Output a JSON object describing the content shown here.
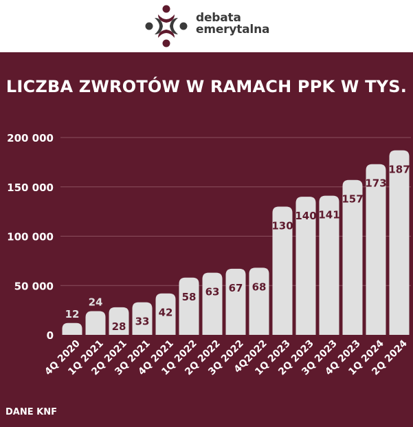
{
  "brand": {
    "name_line1": "debata",
    "name_line2": "emerytalna",
    "colors": {
      "dark": "#3a3a3a",
      "accent": "#5e1a2d"
    }
  },
  "chart_title": "LICZBA ZWROTÓW W RAMACH PPK W TYS.",
  "source_note": "DANE KNF",
  "chart_data": {
    "type": "bar",
    "title": "LICZBA ZWROTÓW W RAMACH PPK W TYS.",
    "categories": [
      "4Q 2020",
      "1Q 2021",
      "2Q 2021",
      "3Q 2021",
      "4Q 2021",
      "1Q 2022",
      "2Q 2022",
      "3Q 2022",
      "4Q2022",
      "1Q 2023",
      "2Q 2023",
      "3Q 2023",
      "4Q 2023",
      "1Q 2024",
      "2Q 2024"
    ],
    "values": [
      12,
      24,
      28,
      33,
      42,
      58,
      63,
      67,
      68,
      130,
      140,
      141,
      157,
      173,
      187
    ],
    "value_labels": [
      "12",
      "24",
      "28",
      "33",
      "42",
      "58",
      "63",
      "67",
      "68",
      "130",
      "140",
      "141",
      "157",
      "173",
      "187"
    ],
    "bar_height_values": [
      12000,
      24000,
      28000,
      33000,
      42000,
      58000,
      63000,
      67000,
      68000,
      130000,
      140000,
      141000,
      157000,
      173000,
      187000
    ],
    "y_ticks": [
      0,
      50000,
      100000,
      150000,
      200000
    ],
    "y_tick_labels": [
      "0",
      "50 000",
      "100 000",
      "150 000",
      "200 000"
    ],
    "ylim": [
      0,
      200000
    ],
    "grid": true,
    "legend": "none",
    "colors": {
      "background": "#5e1a2d",
      "bar": "#e0e0e0",
      "value_label": "#5e1a2d",
      "axis_text": "#ffffff",
      "grid": "#8a4e5e"
    }
  }
}
